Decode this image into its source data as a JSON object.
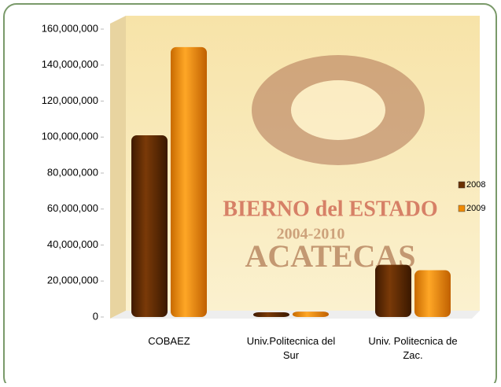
{
  "chart_data": {
    "type": "bar",
    "categories": [
      "COBAEZ",
      "Univ.Politecnica del Sur",
      "Univ. Politecnica de Zac."
    ],
    "series": [
      {
        "name": "2008",
        "color": "#6b3000",
        "values": [
          101000000,
          1000000,
          29000000
        ]
      },
      {
        "name": "2009",
        "color": "#f08a00",
        "values": [
          150000000,
          3000000,
          26000000
        ]
      }
    ],
    "ylim": [
      0,
      160000000
    ],
    "yticks": [
      0,
      {
        "value": 20000000,
        "label": "20,000,000"
      },
      {
        "value": 40000000,
        "label": "40,000,000"
      },
      {
        "value": 60000000,
        "label": "60,000,000"
      },
      {
        "value": 80000000,
        "label": "80,000,000"
      },
      {
        "value": 100000000,
        "label": "100,000,000"
      },
      {
        "value": 120000000,
        "label": "120,000,000"
      },
      {
        "value": 140000000,
        "label": "140,000,000"
      },
      {
        "value": 160000000,
        "label": "160,000,000"
      }
    ],
    "legend": "right",
    "watermark": [
      "BIERNO del ESTADO",
      "2004-2010",
      "ACATECAS"
    ]
  }
}
